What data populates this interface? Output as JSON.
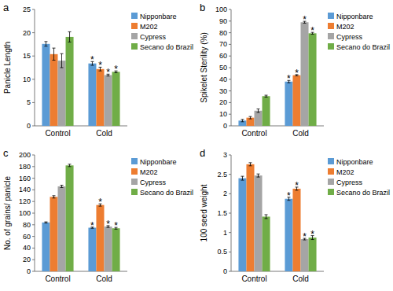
{
  "chart_data": [
    {
      "type": "bar",
      "title": "a",
      "y_label": "Panicle Length",
      "categories": [
        "Control",
        "Cold"
      ],
      "series": [
        {
          "name": "Nipponbare",
          "color": "#5b9bd5",
          "values": [
            17.6,
            13.4
          ],
          "errors": [
            0.5,
            0.4
          ]
        },
        {
          "name": "M202",
          "color": "#ed7d31",
          "values": [
            15.4,
            12.2
          ],
          "errors": [
            1.3,
            0.4
          ]
        },
        {
          "name": "Cypress",
          "color": "#a5a5a5",
          "values": [
            14.0,
            10.9
          ],
          "errors": [
            1.5,
            0.2
          ]
        },
        {
          "name": "Secano do Brazil",
          "color": "#70ad47",
          "values": [
            19.1,
            11.6
          ],
          "errors": [
            1.1,
            0.2
          ]
        }
      ],
      "annotations": [
        {
          "text": "*",
          "series": 0,
          "category": 1
        },
        {
          "text": "*",
          "series": 1,
          "category": 1
        },
        {
          "text": "*",
          "series": 2,
          "category": 1
        },
        {
          "text": "*",
          "series": 3,
          "category": 1
        }
      ],
      "ylim": [
        0,
        25
      ],
      "yticks": [
        0,
        5,
        10,
        15,
        20,
        25
      ],
      "grid": false,
      "legend": "right"
    },
    {
      "type": "bar",
      "title": "b",
      "y_label": "Spikelet Sterility (%)",
      "categories": [
        "Control",
        "Cold"
      ],
      "series": [
        {
          "name": "Nipponbare",
          "color": "#5b9bd5",
          "values": [
            4.5,
            38
          ],
          "errors": [
            1,
            1
          ]
        },
        {
          "name": "M202",
          "color": "#ed7d31",
          "values": [
            7,
            43.5
          ],
          "errors": [
            1,
            0.5
          ]
        },
        {
          "name": "Cypress",
          "color": "#a5a5a5",
          "values": [
            13,
            89
          ],
          "errors": [
            1.5,
            0.8
          ]
        },
        {
          "name": "Secano do Brazil",
          "color": "#70ad47",
          "values": [
            25.5,
            79.5
          ],
          "errors": [
            0.8,
            0.8
          ]
        }
      ],
      "annotations": [
        {
          "text": "*",
          "series": 0,
          "category": 1
        },
        {
          "text": "*",
          "series": 1,
          "category": 1
        },
        {
          "text": "*",
          "series": 2,
          "category": 1
        },
        {
          "text": "*",
          "series": 3,
          "category": 1
        }
      ],
      "ylim": [
        0,
        100
      ],
      "yticks": [
        0,
        10,
        20,
        30,
        40,
        50,
        60,
        70,
        80,
        90,
        100
      ],
      "grid": false,
      "legend": "right"
    },
    {
      "type": "bar",
      "title": "c",
      "y_label": "No. of grains/ panicle",
      "categories": [
        "Control",
        "Cold"
      ],
      "series": [
        {
          "name": "Nipponbare",
          "color": "#5b9bd5",
          "values": [
            84,
            75
          ],
          "errors": [
            1,
            1
          ]
        },
        {
          "name": "M202",
          "color": "#ed7d31",
          "values": [
            128,
            114
          ],
          "errors": [
            2,
            2
          ]
        },
        {
          "name": "Cypress",
          "color": "#a5a5a5",
          "values": [
            146,
            77
          ],
          "errors": [
            2,
            1.5
          ]
        },
        {
          "name": "Secano do Brazil",
          "color": "#70ad47",
          "values": [
            182,
            74
          ],
          "errors": [
            2,
            1.5
          ]
        }
      ],
      "annotations": [
        {
          "text": "*",
          "series": 0,
          "category": 1
        },
        {
          "text": "*",
          "series": 1,
          "category": 1
        },
        {
          "text": "*",
          "series": 2,
          "category": 1
        },
        {
          "text": "*",
          "series": 3,
          "category": 1
        }
      ],
      "ylim": [
        0,
        200
      ],
      "yticks": [
        0,
        20,
        40,
        60,
        80,
        100,
        120,
        140,
        160,
        180,
        200
      ],
      "grid": false,
      "legend": "right"
    },
    {
      "type": "bar",
      "title": "d",
      "y_label": "100 seed weight",
      "categories": [
        "Control",
        "Cold"
      ],
      "series": [
        {
          "name": "Nipponbare",
          "color": "#5b9bd5",
          "values": [
            2.4,
            1.87
          ],
          "errors": [
            0.05,
            0.04
          ]
        },
        {
          "name": "M202",
          "color": "#ed7d31",
          "values": [
            2.76,
            2.13
          ],
          "errors": [
            0.04,
            0.04
          ]
        },
        {
          "name": "Cypress",
          "color": "#a5a5a5",
          "values": [
            2.47,
            0.83
          ],
          "errors": [
            0.04,
            0.02
          ]
        },
        {
          "name": "Secano do Brazil",
          "color": "#70ad47",
          "values": [
            1.41,
            0.87
          ],
          "errors": [
            0.05,
            0.05
          ]
        }
      ],
      "annotations": [
        {
          "text": "*",
          "series": 0,
          "category": 1
        },
        {
          "text": "*",
          "series": 1,
          "category": 1
        },
        {
          "text": "*",
          "series": 2,
          "category": 1
        },
        {
          "text": "*",
          "series": 3,
          "category": 1
        }
      ],
      "ylim": [
        0,
        3
      ],
      "yticks": [
        0,
        0.5,
        1,
        1.5,
        2,
        2.5,
        3
      ],
      "grid": false,
      "legend": "right"
    }
  ]
}
